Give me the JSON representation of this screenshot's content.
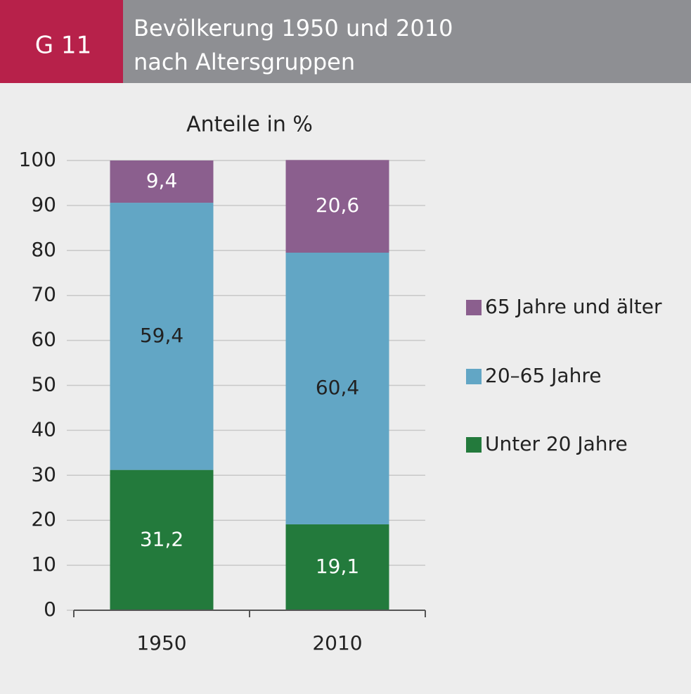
{
  "chart_data": {
    "type": "stacked_bar",
    "label": "G 11",
    "title": [
      "Bevölkerung 1950 und 2010",
      "nach Altersgruppen"
    ],
    "subtitle": "Anteile in %",
    "categories": [
      "1950",
      "2010"
    ],
    "series": [
      {
        "name": "Unter 20 Jahre",
        "color": "#237a3c",
        "values": [
          31.2,
          19.1
        ],
        "value_labels": [
          "31,2",
          "19,1"
        ]
      },
      {
        "name": "20–65 Jahre",
        "color": "#62a6c5",
        "values": [
          59.4,
          60.4
        ],
        "value_labels": [
          "59,4",
          "60,4"
        ]
      },
      {
        "name": "65 Jahre und älter",
        "color": "#8b5f8e",
        "values": [
          9.4,
          20.6
        ],
        "value_labels": [
          "9,4",
          "20,6"
        ]
      }
    ],
    "ylim": [
      0,
      100
    ],
    "yticks": [
      0,
      10,
      20,
      30,
      40,
      50,
      60,
      70,
      80,
      90,
      100
    ],
    "grid": true,
    "legend": "right"
  }
}
